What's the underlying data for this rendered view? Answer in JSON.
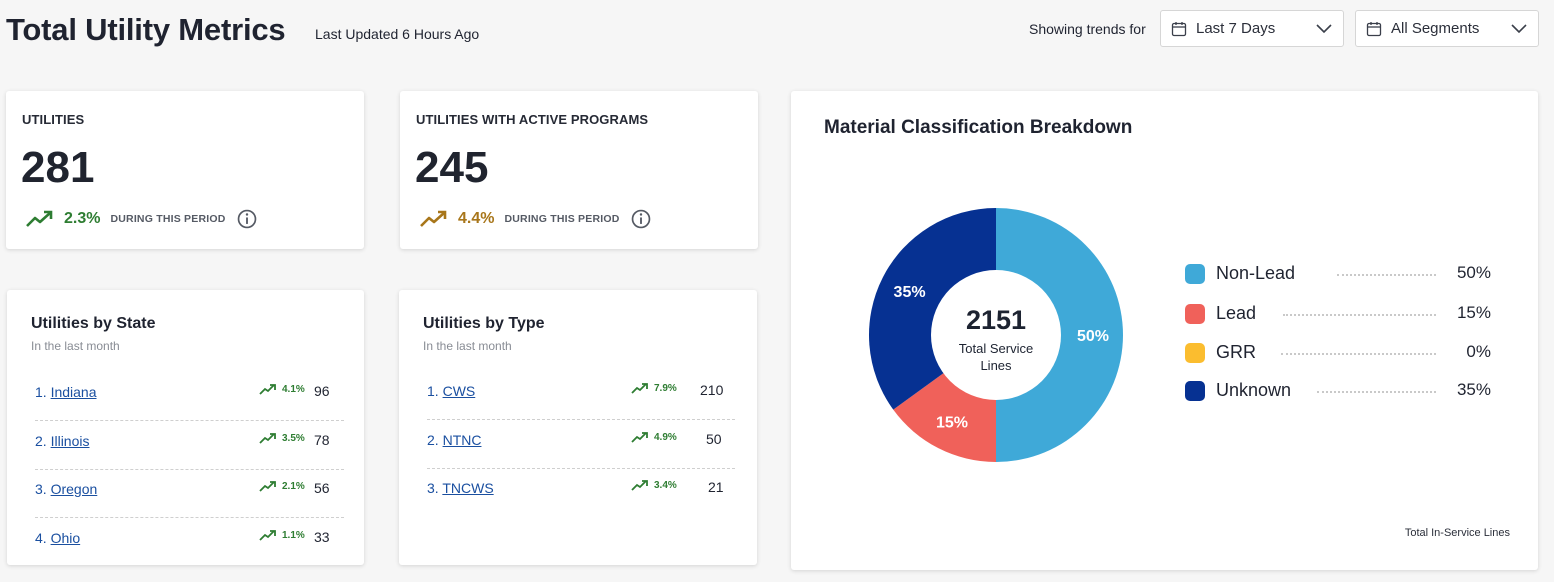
{
  "header": {
    "title": "Total Utility Metrics",
    "last_updated": "Last Updated 6 Hours Ago",
    "trends_label": "Showing trends for",
    "period_value": "Last 7 Days",
    "segment_value": "All Segments"
  },
  "metrics": [
    {
      "label": "UTILITIES",
      "value": "281",
      "pct": "2.3%",
      "period": "DURING THIS PERIOD",
      "trend_color": "#2e7d32"
    },
    {
      "label": "UTILITIES WITH ACTIVE PROGRAMS",
      "value": "245",
      "pct": "4.4%",
      "period": "DURING THIS PERIOD",
      "trend_color": "#a8761a"
    }
  ],
  "by_state": {
    "title": "Utilities by State",
    "subtitle": "In the last month",
    "rows": [
      {
        "rank": "1.",
        "name": "Indiana",
        "pct": "4.1%",
        "count": "96"
      },
      {
        "rank": "2.",
        "name": "Illinois",
        "pct": "3.5%",
        "count": "78"
      },
      {
        "rank": "3.",
        "name": "Oregon",
        "pct": "2.1%",
        "count": "56"
      },
      {
        "rank": "4.",
        "name": "Ohio",
        "pct": "1.1%",
        "count": "33"
      }
    ]
  },
  "by_type": {
    "title": "Utilities by Type",
    "subtitle": "In the last month",
    "rows": [
      {
        "rank": "1.",
        "name": "CWS",
        "pct": "7.9%",
        "count": "210"
      },
      {
        "rank": "2.",
        "name": "NTNC",
        "pct": "4.9%",
        "count": "50"
      },
      {
        "rank": "3.",
        "name": "TNCWS",
        "pct": "3.4%",
        "count": "21"
      }
    ]
  },
  "material": {
    "title": "Material Classification Breakdown",
    "center_value": "2151",
    "center_label_line1": "Total Service",
    "center_label_line2": "Lines",
    "footer": "Total In-Service Lines",
    "legend": [
      {
        "name": "Non-Lead",
        "pct": "50%",
        "color": "#3fa9d8"
      },
      {
        "name": "Lead",
        "pct": "15%",
        "color": "#f0615a"
      },
      {
        "name": "GRR",
        "pct": "0%",
        "color": "#fbbd2f"
      },
      {
        "name": "Unknown",
        "pct": "35%",
        "color": "#063192"
      }
    ]
  },
  "chart_data": {
    "type": "pie",
    "categories": [
      "Non-Lead",
      "Lead",
      "GRR",
      "Unknown"
    ],
    "values": [
      50,
      15,
      0,
      35
    ],
    "title": "Material Classification Breakdown"
  }
}
